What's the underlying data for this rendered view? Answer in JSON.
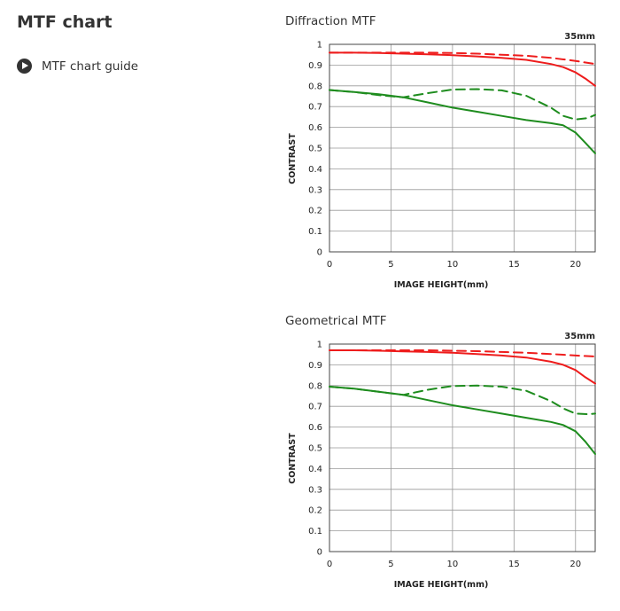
{
  "page": {
    "title": "MTF chart",
    "guide_link": "MTF chart guide"
  },
  "colors": {
    "sagittal_lines": "#ee1c1c",
    "meridional_lines": "#1e8c1e",
    "grid": "#999999",
    "text": "#333333"
  },
  "icons": {
    "guide": "play-circle-icon"
  },
  "chart_data": [
    {
      "type": "line",
      "title": "Diffraction MTF",
      "focal_length": "35mm",
      "xlabel": "IMAGE HEIGHT(mm)",
      "ylabel": "CONTRAST",
      "xlim": [
        0,
        21.6
      ],
      "ylim": [
        0,
        1
      ],
      "xticks": [
        "0",
        "5",
        "10",
        "15",
        "20"
      ],
      "yticks": [
        "0",
        "0.1",
        "0.2",
        "0.3",
        "0.4",
        "0.5",
        "0.6",
        "0.7",
        "0.8",
        "0.9",
        "1"
      ],
      "grid": true,
      "legend": "none",
      "series": [
        {
          "color": "#ee1c1c",
          "dash": "solid",
          "points": [
            [
              0,
              0.96
            ],
            [
              2,
              0.96
            ],
            [
              4,
              0.958
            ],
            [
              6,
              0.955
            ],
            [
              8,
              0.952
            ],
            [
              10,
              0.948
            ],
            [
              12,
              0.942
            ],
            [
              14,
              0.935
            ],
            [
              16,
              0.925
            ],
            [
              18,
              0.905
            ],
            [
              19,
              0.89
            ],
            [
              20,
              0.865
            ],
            [
              20.8,
              0.835
            ],
            [
              21.6,
              0.8
            ]
          ]
        },
        {
          "color": "#ee1c1c",
          "dash": "dashed",
          "points": [
            [
              0,
              0.96
            ],
            [
              2,
              0.96
            ],
            [
              4,
              0.96
            ],
            [
              6,
              0.96
            ],
            [
              8,
              0.96
            ],
            [
              10,
              0.958
            ],
            [
              12,
              0.955
            ],
            [
              14,
              0.95
            ],
            [
              16,
              0.945
            ],
            [
              18,
              0.935
            ],
            [
              20,
              0.92
            ],
            [
              21.6,
              0.905
            ]
          ]
        },
        {
          "color": "#1e8c1e",
          "dash": "solid",
          "points": [
            [
              0,
              0.78
            ],
            [
              2,
              0.77
            ],
            [
              4,
              0.76
            ],
            [
              6,
              0.745
            ],
            [
              8,
              0.72
            ],
            [
              10,
              0.695
            ],
            [
              12,
              0.675
            ],
            [
              14,
              0.655
            ],
            [
              16,
              0.635
            ],
            [
              18,
              0.62
            ],
            [
              19,
              0.61
            ],
            [
              20,
              0.575
            ],
            [
              20.8,
              0.525
            ],
            [
              21.6,
              0.475
            ]
          ]
        },
        {
          "color": "#1e8c1e",
          "dash": "dashed",
          "points": [
            [
              0,
              0.78
            ],
            [
              2,
              0.77
            ],
            [
              4,
              0.755
            ],
            [
              6,
              0.745
            ],
            [
              8,
              0.765
            ],
            [
              10,
              0.782
            ],
            [
              12,
              0.784
            ],
            [
              14,
              0.778
            ],
            [
              16,
              0.752
            ],
            [
              18,
              0.695
            ],
            [
              19,
              0.655
            ],
            [
              20,
              0.638
            ],
            [
              21,
              0.645
            ],
            [
              21.6,
              0.66
            ]
          ]
        }
      ]
    },
    {
      "type": "line",
      "title": "Geometrical MTF",
      "focal_length": "35mm",
      "xlabel": "IMAGE HEIGHT(mm)",
      "ylabel": "CONTRAST",
      "xlim": [
        0,
        21.6
      ],
      "ylim": [
        0,
        1
      ],
      "xticks": [
        "0",
        "5",
        "10",
        "15",
        "20"
      ],
      "yticks": [
        "0",
        "0.1",
        "0.2",
        "0.3",
        "0.4",
        "0.5",
        "0.6",
        "0.7",
        "0.8",
        "0.9",
        "1"
      ],
      "grid": true,
      "legend": "none",
      "series": [
        {
          "color": "#ee1c1c",
          "dash": "solid",
          "points": [
            [
              0,
              0.97
            ],
            [
              2,
              0.97
            ],
            [
              4,
              0.968
            ],
            [
              6,
              0.965
            ],
            [
              8,
              0.962
            ],
            [
              10,
              0.958
            ],
            [
              12,
              0.952
            ],
            [
              14,
              0.945
            ],
            [
              16,
              0.935
            ],
            [
              18,
              0.915
            ],
            [
              19,
              0.9
            ],
            [
              20,
              0.875
            ],
            [
              20.8,
              0.84
            ],
            [
              21.6,
              0.81
            ]
          ]
        },
        {
          "color": "#ee1c1c",
          "dash": "dashed",
          "points": [
            [
              0,
              0.97
            ],
            [
              2,
              0.97
            ],
            [
              4,
              0.97
            ],
            [
              6,
              0.97
            ],
            [
              8,
              0.97
            ],
            [
              10,
              0.968
            ],
            [
              12,
              0.966
            ],
            [
              14,
              0.962
            ],
            [
              16,
              0.958
            ],
            [
              18,
              0.952
            ],
            [
              20,
              0.945
            ],
            [
              21.6,
              0.94
            ]
          ]
        },
        {
          "color": "#1e8c1e",
          "dash": "solid",
          "points": [
            [
              0,
              0.795
            ],
            [
              2,
              0.785
            ],
            [
              4,
              0.77
            ],
            [
              6,
              0.755
            ],
            [
              8,
              0.73
            ],
            [
              10,
              0.705
            ],
            [
              12,
              0.685
            ],
            [
              14,
              0.665
            ],
            [
              16,
              0.645
            ],
            [
              18,
              0.625
            ],
            [
              19,
              0.61
            ],
            [
              20,
              0.58
            ],
            [
              20.8,
              0.53
            ],
            [
              21.6,
              0.47
            ]
          ]
        },
        {
          "color": "#1e8c1e",
          "dash": "dashed",
          "points": [
            [
              0,
              0.795
            ],
            [
              2,
              0.785
            ],
            [
              4,
              0.77
            ],
            [
              6,
              0.755
            ],
            [
              8,
              0.78
            ],
            [
              10,
              0.798
            ],
            [
              12,
              0.8
            ],
            [
              14,
              0.795
            ],
            [
              16,
              0.775
            ],
            [
              18,
              0.725
            ],
            [
              19,
              0.69
            ],
            [
              20,
              0.665
            ],
            [
              21,
              0.662
            ],
            [
              21.6,
              0.665
            ]
          ]
        }
      ]
    }
  ]
}
